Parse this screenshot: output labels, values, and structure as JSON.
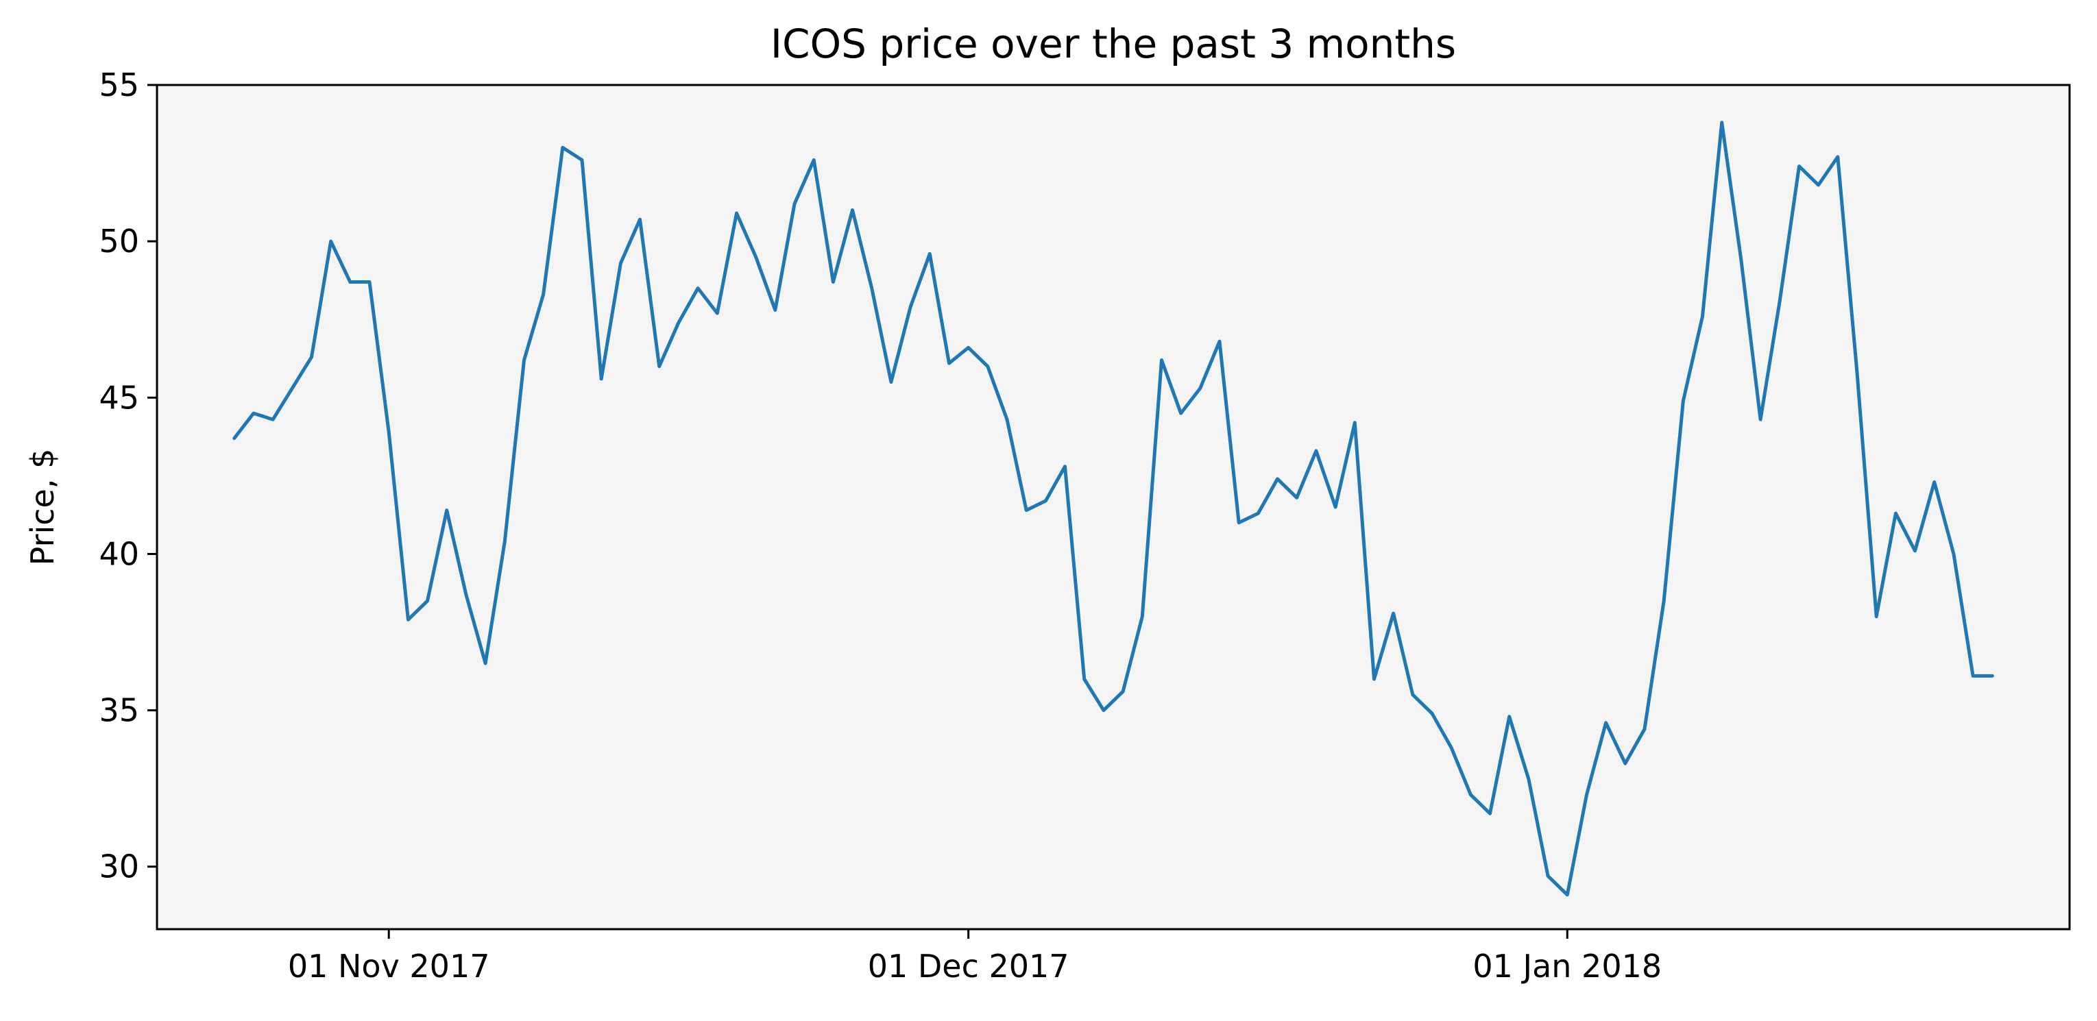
{
  "chart_data": {
    "type": "line",
    "title": "ICOS price over the past 3 months",
    "xlabel": "",
    "ylabel": "Price, $",
    "ylim": [
      28,
      55
    ],
    "xlim": [
      "2017-10-20",
      "2018-01-27"
    ],
    "yticks": [
      30,
      35,
      40,
      45,
      50,
      55
    ],
    "xticks": [
      {
        "date": "2017-11-01",
        "label": "01 Nov 2017"
      },
      {
        "date": "2017-12-01",
        "label": "01 Dec 2017"
      },
      {
        "date": "2018-01-01",
        "label": "01 Jan 2018"
      }
    ],
    "background": "#f4f4f4",
    "line_color": "#1f77b4",
    "grid": false,
    "x": [
      "2017-10-24",
      "2017-10-25",
      "2017-10-26",
      "2017-10-27",
      "2017-10-28",
      "2017-10-29",
      "2017-10-30",
      "2017-10-31",
      "2017-11-01",
      "2017-11-02",
      "2017-11-03",
      "2017-11-04",
      "2017-11-05",
      "2017-11-06",
      "2017-11-07",
      "2017-11-08",
      "2017-11-09",
      "2017-11-10",
      "2017-11-11",
      "2017-11-12",
      "2017-11-13",
      "2017-11-14",
      "2017-11-15",
      "2017-11-16",
      "2017-11-17",
      "2017-11-18",
      "2017-11-19",
      "2017-11-20",
      "2017-11-21",
      "2017-11-22",
      "2017-11-23",
      "2017-11-24",
      "2017-11-25",
      "2017-11-26",
      "2017-11-27",
      "2017-11-28",
      "2017-11-29",
      "2017-11-30",
      "2017-12-01",
      "2017-12-02",
      "2017-12-03",
      "2017-12-04",
      "2017-12-05",
      "2017-12-06",
      "2017-12-07",
      "2017-12-08",
      "2017-12-09",
      "2017-12-10",
      "2017-12-11",
      "2017-12-12",
      "2017-12-13",
      "2017-12-14",
      "2017-12-15",
      "2017-12-16",
      "2017-12-17",
      "2017-12-18",
      "2017-12-19",
      "2017-12-20",
      "2017-12-21",
      "2017-12-22",
      "2017-12-23",
      "2017-12-24",
      "2017-12-25",
      "2017-12-26",
      "2017-12-27",
      "2017-12-28",
      "2017-12-29",
      "2017-12-30",
      "2017-12-31",
      "2018-01-01",
      "2018-01-02",
      "2018-01-03",
      "2018-01-04",
      "2018-01-05",
      "2018-01-06",
      "2018-01-07",
      "2018-01-08",
      "2018-01-09",
      "2018-01-10",
      "2018-01-11",
      "2018-01-12",
      "2018-01-13",
      "2018-01-14",
      "2018-01-15",
      "2018-01-16",
      "2018-01-17",
      "2018-01-18",
      "2018-01-19",
      "2018-01-20",
      "2018-01-21",
      "2018-01-22",
      "2018-01-23"
    ],
    "series": [
      {
        "values": [
          43.7,
          44.5,
          44.3,
          45.3,
          46.3,
          50.0,
          48.7,
          48.7,
          43.9,
          37.9,
          38.5,
          41.4,
          38.7,
          36.5,
          40.4,
          46.2,
          48.3,
          53.0,
          52.6,
          45.6,
          49.3,
          50.7,
          46.0,
          47.4,
          48.5,
          47.7,
          50.9,
          49.5,
          47.8,
          51.2,
          52.6,
          48.7,
          51.0,
          48.5,
          45.5,
          47.9,
          49.6,
          46.1,
          46.6,
          46.0,
          44.3,
          41.4,
          41.7,
          42.8,
          36.0,
          35.0,
          35.6,
          38.0,
          46.2,
          44.5,
          45.3,
          46.8,
          41.0,
          41.3,
          42.4,
          41.8,
          43.3,
          41.5,
          44.2,
          36.0,
          38.1,
          35.5,
          34.9,
          33.8,
          32.3,
          31.7,
          34.8,
          32.8,
          29.7,
          29.1,
          32.3,
          34.6,
          33.3,
          34.4,
          38.5,
          44.9,
          47.6,
          53.8,
          49.4,
          44.3,
          48.1,
          52.4,
          51.8,
          52.7,
          45.8,
          38.0,
          41.3,
          40.1,
          42.3,
          40.0,
          36.1,
          36.1
        ]
      }
    ]
  }
}
